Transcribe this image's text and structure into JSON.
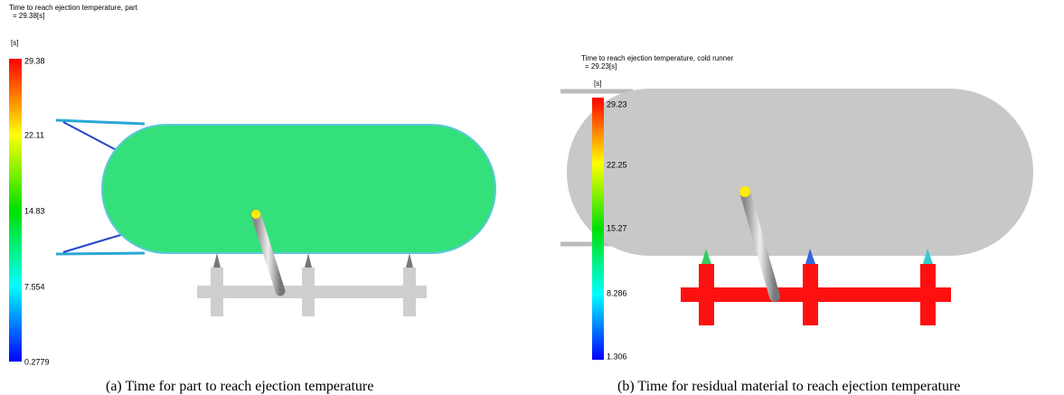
{
  "panels": [
    {
      "title": "Time to reach ejection temperature, part",
      "result": "= 29.38[s]",
      "unit": "[s]",
      "scale_labels": [
        "29.38",
        "22.11",
        "14.83",
        "7.554",
        "0.2779"
      ],
      "caption": "(a) Time for part to reach ejection temperature"
    },
    {
      "title": "Time to reach ejection temperature, cold runner",
      "result": "= 29.23[s]",
      "unit": "[s]",
      "scale_labels": [
        "29.23",
        "22.25",
        "15.27",
        "8.286",
        "1.306"
      ],
      "caption": "(b) Time for residual material to reach ejection temperature"
    }
  ]
}
